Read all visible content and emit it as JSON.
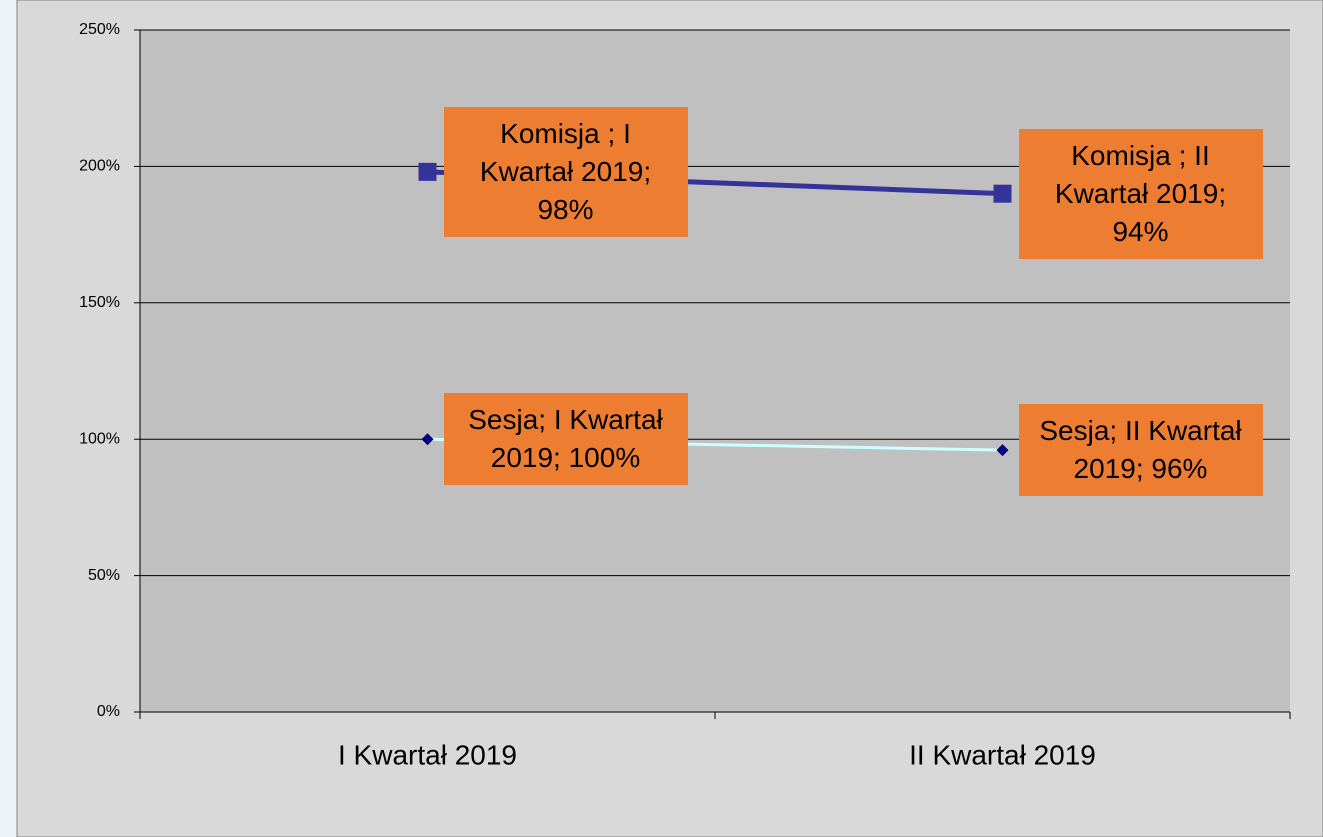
{
  "chart_data": {
    "type": "line",
    "stacked": true,
    "categories": [
      "I Kwartał 2019",
      "II Kwartał 2019"
    ],
    "series": [
      {
        "name": "Sesja",
        "color": "#ccffff",
        "marker_color": "#000080",
        "marker": "diamond",
        "values": [
          100,
          96
        ],
        "value_labels": [
          "Sesja; I Kwartał 2019; 100%",
          "Sesja; II Kwartał 2019; 96%"
        ]
      },
      {
        "name": "Komisja",
        "color": "#333399",
        "marker_color": "#333399",
        "marker": "square",
        "values": [
          98,
          94
        ],
        "value_labels": [
          "Komisja ; I Kwartał 2019; 98%",
          "Komisja ; II Kwartał 2019; 94%"
        ]
      }
    ],
    "ylim": [
      0,
      250
    ],
    "yticks": [
      {
        "value": 0,
        "label": "0%"
      },
      {
        "value": 50,
        "label": "50%"
      },
      {
        "value": 100,
        "label": "100%"
      },
      {
        "value": 150,
        "label": "150%"
      },
      {
        "value": 200,
        "label": "200%"
      },
      {
        "value": 250,
        "label": "250%"
      }
    ],
    "grid": true,
    "label_color": "#ed7d31"
  }
}
